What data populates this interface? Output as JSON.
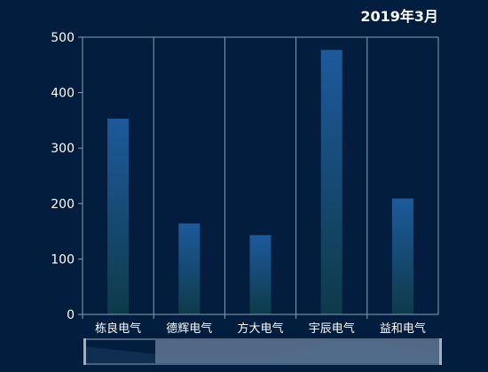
{
  "header": {
    "period": "2019年3月"
  },
  "chart_data": {
    "type": "bar",
    "title": "2019年3月",
    "categories": [
      "栋良电气",
      "德辉电气",
      "方大电气",
      "宇辰电气",
      "益和电气"
    ],
    "values": [
      353,
      164,
      143,
      477,
      209
    ],
    "xlabel": "",
    "ylabel": "",
    "ylim": [
      0,
      500
    ],
    "yticks": [
      0,
      100,
      200,
      300,
      400,
      500
    ],
    "grid": "vertical separators between categories",
    "colors": {
      "bar_top": "#1d5a9c",
      "bar_bottom": "#0e3a4a",
      "axis": "#8ba0b8",
      "text": "#ffffff",
      "background": "#021d3d",
      "slider_handle": "#5f7594",
      "slider_frame": "#9fb0c4"
    },
    "data_zoom": {
      "visible": true,
      "start_percent": 0,
      "end_percent": 100
    }
  }
}
